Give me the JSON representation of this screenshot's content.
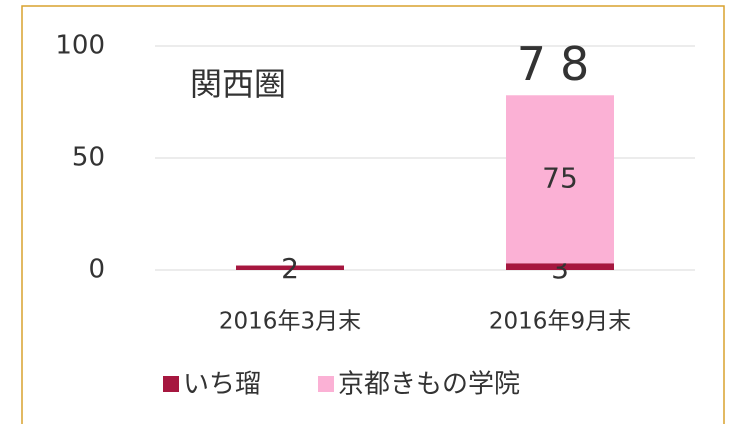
{
  "chart_data": {
    "type": "stacked_bar",
    "annotation": "関西圏",
    "categories": [
      "2016年3月末",
      "2016年9月末"
    ],
    "series": [
      {
        "name": "いち瑠",
        "color": "#a6173f",
        "values": [
          2,
          3
        ]
      },
      {
        "name": "京都きもの学院",
        "color": "#fbb1d5",
        "values": [
          null,
          75
        ]
      }
    ],
    "totals": [
      null,
      78
    ],
    "ylim": [
      0,
      100
    ],
    "yticks": [
      0,
      50,
      100
    ],
    "grid": true,
    "legend": "bottom"
  }
}
